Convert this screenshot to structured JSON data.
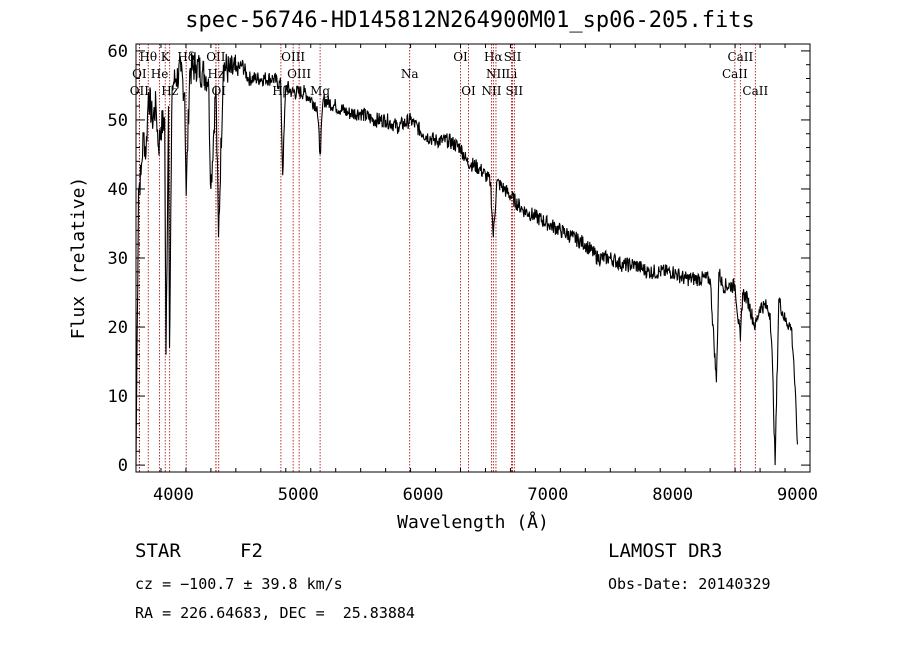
{
  "page": {
    "title": "spec-56746-HD145812N264900M01_sp06-205.fits",
    "object_type": "STAR",
    "spectral_class": "F2",
    "survey": "LAMOST DR3",
    "cz": "cz = −100.7 ± 39.8 km/s",
    "obs_date": "Obs-Date: 20140329",
    "coords": "RA = 226.64683, DEC =  25.83884"
  },
  "chart_data": {
    "type": "line",
    "title": "spec-56746-HD145812N264900M01_sp06-205.fits",
    "xlabel": "Wavelength (Å)",
    "ylabel": "Flux (relative)",
    "xlim": [
      3700,
      9100
    ],
    "ylim": [
      -1,
      61
    ],
    "xticks": [
      4000,
      5000,
      6000,
      7000,
      8000,
      9000
    ],
    "yticks": [
      0,
      10,
      20,
      30,
      40,
      50,
      60
    ],
    "grid": false,
    "line_color": "#000000",
    "marker_color": "#aa0000",
    "x": [
      3700,
      3710,
      3720,
      3740,
      3760,
      3780,
      3800,
      3830,
      3860,
      3880,
      3900,
      3930,
      3940,
      3960,
      3968,
      3990,
      4020,
      4060,
      4090,
      4102,
      4130,
      4180,
      4230,
      4280,
      4300,
      4340,
      4361,
      4400,
      4450,
      4500,
      4550,
      4600,
      4700,
      4800,
      4860,
      4875,
      4900,
      4950,
      5000,
      5050,
      5100,
      5150,
      5175,
      5200,
      5300,
      5400,
      5500,
      5600,
      5700,
      5800,
      5900,
      6000,
      6100,
      6200,
      6300,
      6350,
      6450,
      6500,
      6540,
      6563,
      6590,
      6650,
      6700,
      6800,
      6900,
      7000,
      7100,
      7200,
      7300,
      7400,
      7500,
      7600,
      7700,
      7800,
      7900,
      8000,
      8100,
      8200,
      8300,
      8350,
      8370,
      8400,
      8500,
      8542,
      8560,
      8600,
      8662,
      8700,
      8750,
      8780,
      8800,
      8820,
      8850,
      8900,
      8950,
      8970,
      9000
    ],
    "y": [
      0,
      20,
      40,
      42,
      48,
      45,
      54,
      50,
      52,
      46,
      49,
      50,
      16,
      52,
      17,
      55,
      56,
      57,
      54,
      39,
      57,
      58,
      57,
      56,
      40,
      55,
      33,
      58,
      57,
      57,
      58,
      56,
      56,
      56,
      55,
      42,
      55,
      54,
      54,
      54,
      53,
      52,
      45,
      53,
      52,
      51,
      51,
      50,
      50,
      49,
      50,
      48,
      47,
      47,
      46,
      44,
      43,
      42,
      41,
      33,
      41,
      40,
      39,
      37,
      36,
      35,
      34,
      33,
      32,
      30,
      30,
      29,
      29,
      28,
      28,
      28,
      27,
      27,
      27,
      12,
      28,
      26,
      26,
      18,
      25,
      24,
      20,
      23,
      23,
      22,
      14,
      0,
      24,
      21,
      20,
      15,
      3
    ],
    "line_markers": [
      {
        "label": "Hθ",
        "wl": 3798,
        "row": 0
      },
      {
        "label": "K",
        "wl": 3934,
        "row": 0
      },
      {
        "label": "Hδ",
        "wl": 4102,
        "row": 0
      },
      {
        "label": "OII",
        "wl": 4340,
        "row": 0
      },
      {
        "label": "OIII",
        "wl": 4959,
        "row": 0
      },
      {
        "label": "OI",
        "wl": 6300,
        "row": 0
      },
      {
        "label": "Hα",
        "wl": 6563,
        "row": 0
      },
      {
        "label": "SII",
        "wl": 6717,
        "row": 0
      },
      {
        "label": "CaII",
        "wl": 8542,
        "row": 0
      },
      {
        "label": "OI",
        "wl": 3727,
        "row": 1
      },
      {
        "label": "He",
        "wl": 3889,
        "row": 1
      },
      {
        "label": "Hz",
        "wl": 4340,
        "row": 1
      },
      {
        "label": "OIII",
        "wl": 5007,
        "row": 1
      },
      {
        "label": "Na",
        "wl": 5893,
        "row": 1
      },
      {
        "label": "NII",
        "wl": 6584,
        "row": 1
      },
      {
        "label": "Li",
        "wl": 6708,
        "row": 1
      },
      {
        "label": "CaII",
        "wl": 8498,
        "row": 1
      },
      {
        "label": "OII",
        "wl": 3727,
        "row": 2
      },
      {
        "label": "Hz",
        "wl": 3970,
        "row": 2
      },
      {
        "label": "OI",
        "wl": 4363,
        "row": 2
      },
      {
        "label": "Hβ",
        "wl": 4861,
        "row": 2
      },
      {
        "label": "Mg",
        "wl": 5175,
        "row": 2
      },
      {
        "label": "OI",
        "wl": 6364,
        "row": 2
      },
      {
        "label": "NII",
        "wl": 6548,
        "row": 2
      },
      {
        "label": "SII",
        "wl": 6731,
        "row": 2
      },
      {
        "label": "CaII",
        "wl": 8662,
        "row": 2
      }
    ]
  }
}
